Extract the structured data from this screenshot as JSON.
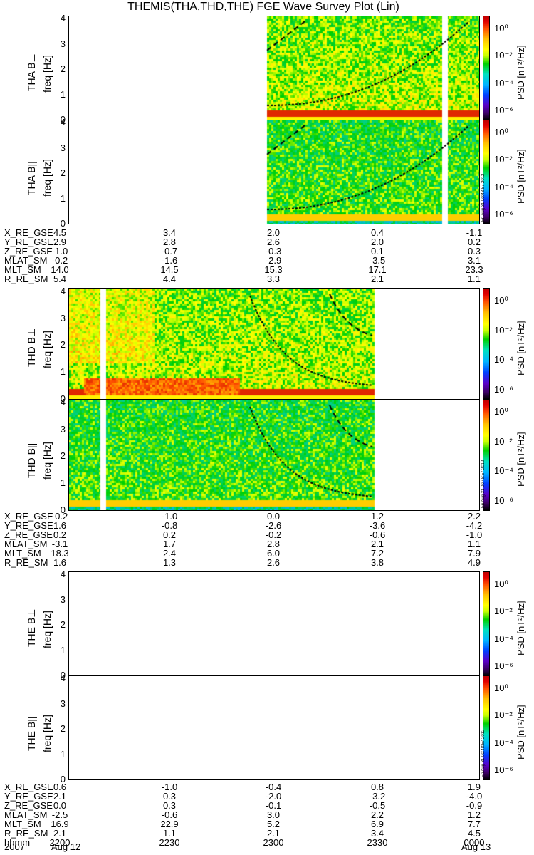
{
  "title": "THEMIS(THA,THD,THE) FGE Wave Survey Plot (Lin)",
  "colorbar": {
    "label": "PSD [nT²/Hz]",
    "ticks": [
      "10⁰",
      "10⁻²",
      "10⁻⁴",
      "10⁻⁶"
    ],
    "stamp": "Fri Aug 31 00:48:57 2012",
    "colors": [
      "#000000",
      "#5a00c8",
      "#0040ff",
      "#00b4ff",
      "#00d000",
      "#ffff00",
      "#ff5000",
      "#c00000"
    ]
  },
  "freq_ticks": [
    "0",
    "1",
    "2",
    "3",
    "4"
  ],
  "panels": [
    {
      "label": "THA B⊥",
      "ylabel": "freq [Hz]"
    },
    {
      "label": "THA B||",
      "ylabel": "freq [Hz]"
    },
    {
      "label": "THD B⊥",
      "ylabel": "freq [Hz]"
    },
    {
      "label": "THD B||",
      "ylabel": "freq [Hz]"
    },
    {
      "label": "THE B⊥",
      "ylabel": "freq [Hz]"
    },
    {
      "label": "THE B||",
      "ylabel": "freq [Hz]"
    }
  ],
  "ephem": [
    {
      "rows": [
        {
          "name": "X_RE_GSE",
          "values": [
            "4.5",
            "3.4",
            "2.0",
            "0.4",
            "-1.1"
          ]
        },
        {
          "name": "Y_RE_GSE",
          "values": [
            "2.9",
            "2.8",
            "2.6",
            "2.0",
            "0.2"
          ]
        },
        {
          "name": "Z_RE_GSE",
          "values": [
            "-1.0",
            "-0.7",
            "-0.3",
            "0.1",
            "0.3"
          ]
        },
        {
          "name": "MLAT_SM",
          "values": [
            "-0.2",
            "-1.6",
            "-2.9",
            "-3.5",
            "3.1"
          ]
        },
        {
          "name": "MLT_SM",
          "values": [
            "14.0",
            "14.5",
            "15.3",
            "17.1",
            "23.3"
          ]
        },
        {
          "name": "R_RE_SM",
          "values": [
            "5.4",
            "4.4",
            "3.3",
            "2.1",
            "1.1"
          ]
        }
      ]
    },
    {
      "rows": [
        {
          "name": "X_RE_GSE",
          "values": [
            "-0.2",
            "-1.0",
            "0.0",
            "1.2",
            "2.2"
          ]
        },
        {
          "name": "Y_RE_GSE",
          "values": [
            "1.6",
            "-0.8",
            "-2.6",
            "-3.6",
            "-4.2"
          ]
        },
        {
          "name": "Z_RE_GSE",
          "values": [
            "0.2",
            "0.2",
            "-0.2",
            "-0.6",
            "-1.0"
          ]
        },
        {
          "name": "MLAT_SM",
          "values": [
            "-3.1",
            "1.7",
            "2.8",
            "2.1",
            "1.1"
          ]
        },
        {
          "name": "MLT_SM",
          "values": [
            "18.3",
            "2.4",
            "6.0",
            "7.2",
            "7.9"
          ]
        },
        {
          "name": "R_RE_SM",
          "values": [
            "1.6",
            "1.3",
            "2.6",
            "3.8",
            "4.9"
          ]
        }
      ]
    },
    {
      "rows": [
        {
          "name": "X_RE_GSE",
          "values": [
            "0.6",
            "-1.0",
            "-0.4",
            "0.8",
            "1.9"
          ]
        },
        {
          "name": "Y_RE_GSE",
          "values": [
            "2.1",
            "0.3",
            "-2.0",
            "-3.2",
            "-4.0"
          ]
        },
        {
          "name": "Z_RE_GSE",
          "values": [
            "0.0",
            "0.3",
            "-0.1",
            "-0.5",
            "-0.9"
          ]
        },
        {
          "name": "MLAT_SM",
          "values": [
            "-2.5",
            "-0.6",
            "3.0",
            "2.2",
            "1.2"
          ]
        },
        {
          "name": "MLT_SM",
          "values": [
            "16.9",
            "22.9",
            "5.2",
            "6.9",
            "7.7"
          ]
        },
        {
          "name": "R_RE_SM",
          "values": [
            "2.1",
            "1.1",
            "2.1",
            "3.4",
            "4.5"
          ]
        },
        {
          "name": "hhmm",
          "values": [
            "2200",
            "2230",
            "2300",
            "2330",
            "0000"
          ]
        }
      ]
    }
  ],
  "date_row": {
    "year": "2007",
    "start": "Aug 12",
    "end": "Aug 13"
  },
  "chart_data": [
    {
      "type": "heatmap",
      "title": "THEMIS(THA,THD,THE) FGE Wave Survey Plot (Lin)",
      "ylabel": "freq [Hz]",
      "ylim": [
        0,
        4
      ],
      "series": [
        {
          "name": "THA B⊥"
        },
        {
          "name": "THA B||"
        },
        {
          "name": "THD B⊥"
        },
        {
          "name": "THD B||"
        },
        {
          "name": "THE B⊥"
        },
        {
          "name": "THE B||"
        }
      ],
      "x_ticks": [
        "2200",
        "2230",
        "2300",
        "2330",
        "0000"
      ],
      "colorbar_ticks": [
        "10⁰",
        "10⁻²",
        "10⁻⁴",
        "10⁻⁶"
      ]
    }
  ]
}
